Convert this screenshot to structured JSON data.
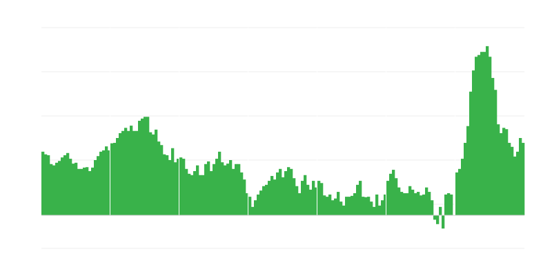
{
  "chart_data": {
    "type": "bar",
    "title": "",
    "xlabel": "",
    "ylabel": "",
    "ylim": [
      -0.75,
      4.25
    ],
    "gridlines": [
      4.25,
      3.25,
      2.25,
      1.25,
      0.25,
      -0.75
    ],
    "grid": true,
    "legend": "none",
    "bar_color": "#39b24a",
    "grid_color": "#eeeeee",
    "baseline_color": "#cccccc",
    "values": [
      1.44,
      1.38,
      1.36,
      1.16,
      1.13,
      1.19,
      1.23,
      1.31,
      1.36,
      1.41,
      1.28,
      1.17,
      1.19,
      1.05,
      1.05,
      1.08,
      1.09,
      1.0,
      1.08,
      1.25,
      1.34,
      1.44,
      1.47,
      1.56,
      1.47,
      1.63,
      1.64,
      1.75,
      1.86,
      1.91,
      1.98,
      1.91,
      2.03,
      1.91,
      1.91,
      2.14,
      2.19,
      2.23,
      2.23,
      1.88,
      1.83,
      1.94,
      1.67,
      1.59,
      1.38,
      1.36,
      1.25,
      1.52,
      1.2,
      1.28,
      1.31,
      1.28,
      1.05,
      0.94,
      0.91,
      1.0,
      1.13,
      0.91,
      0.91,
      1.16,
      1.22,
      1.0,
      1.16,
      1.28,
      1.44,
      1.2,
      1.13,
      1.17,
      1.25,
      1.05,
      1.16,
      1.16,
      0.97,
      0.81,
      0.5,
      0.42,
      0.19,
      0.34,
      0.47,
      0.56,
      0.66,
      0.69,
      0.78,
      0.89,
      0.81,
      0.97,
      1.05,
      0.86,
      1.0,
      1.09,
      1.05,
      0.84,
      0.66,
      0.5,
      0.78,
      0.91,
      0.69,
      0.58,
      0.78,
      0.63,
      0.78,
      0.73,
      0.45,
      0.42,
      0.47,
      0.34,
      0.38,
      0.53,
      0.31,
      0.22,
      0.42,
      0.42,
      0.44,
      0.5,
      0.69,
      0.78,
      0.42,
      0.41,
      0.42,
      0.31,
      0.19,
      0.47,
      0.22,
      0.34,
      0.47,
      0.78,
      0.94,
      1.03,
      0.84,
      0.63,
      0.53,
      0.5,
      0.5,
      0.66,
      0.58,
      0.5,
      0.53,
      0.45,
      0.47,
      0.63,
      0.53,
      0.34,
      -0.1,
      -0.2,
      0.19,
      -0.3,
      0.47,
      0.5,
      0.47,
      0.0,
      0.97,
      1.05,
      1.28,
      1.64,
      2.02,
      2.8,
      3.28,
      3.59,
      3.63,
      3.7,
      3.7,
      3.83,
      3.59,
      3.11,
      2.84,
      2.06,
      1.86,
      1.98,
      1.95,
      1.64,
      1.55,
      1.33,
      1.44,
      1.75,
      1.64
    ]
  }
}
